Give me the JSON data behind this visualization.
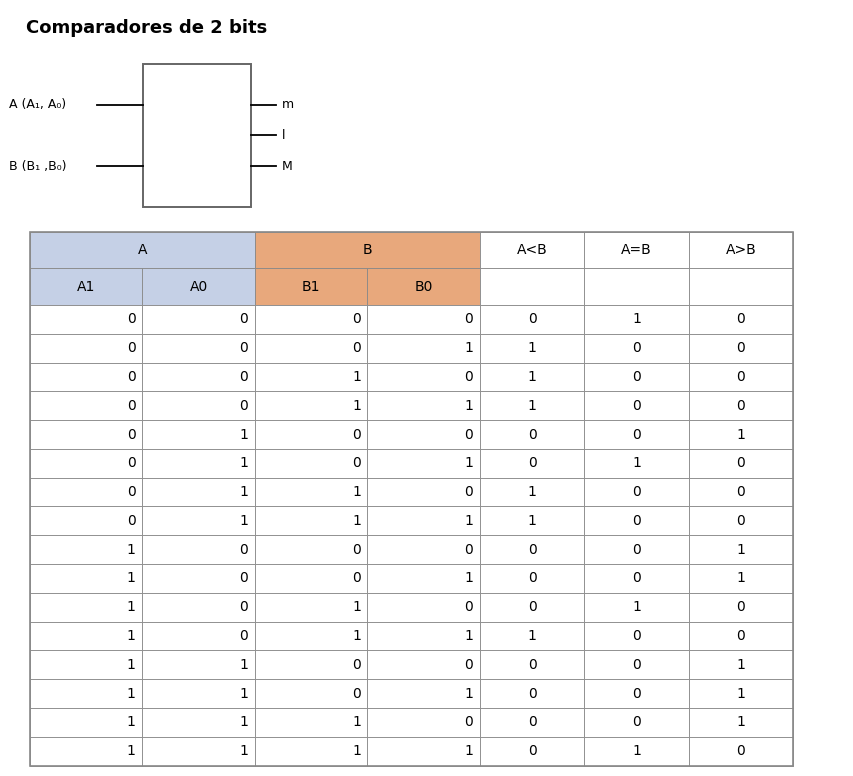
{
  "title": "Comparadores de 2 bits",
  "input_A_label": "A (A₁, A₀)",
  "input_B_label": "B (B₁ ,B₀)",
  "output_labels": [
    "m",
    "l",
    "M"
  ],
  "header_bg_A": "#c5d0e6",
  "header_bg_B": "#e8a87c",
  "header_bg_white": "#ffffff",
  "col_headers_row1": [
    "A",
    "B",
    "A<B",
    "A=B",
    "A>B"
  ],
  "col_headers_row2": [
    "A1",
    "A0",
    "B1",
    "B0",
    "",
    "",
    ""
  ],
  "data": [
    [
      0,
      0,
      0,
      0,
      0,
      1,
      0
    ],
    [
      0,
      0,
      0,
      1,
      1,
      0,
      0
    ],
    [
      0,
      0,
      1,
      0,
      1,
      0,
      0
    ],
    [
      0,
      0,
      1,
      1,
      1,
      0,
      0
    ],
    [
      0,
      1,
      0,
      0,
      0,
      0,
      1
    ],
    [
      0,
      1,
      0,
      1,
      0,
      1,
      0
    ],
    [
      0,
      1,
      1,
      0,
      1,
      0,
      0
    ],
    [
      0,
      1,
      1,
      1,
      1,
      0,
      0
    ],
    [
      1,
      0,
      0,
      0,
      0,
      0,
      1
    ],
    [
      1,
      0,
      0,
      1,
      0,
      0,
      1
    ],
    [
      1,
      0,
      1,
      0,
      0,
      1,
      0
    ],
    [
      1,
      0,
      1,
      1,
      1,
      0,
      0
    ],
    [
      1,
      1,
      0,
      0,
      0,
      0,
      1
    ],
    [
      1,
      1,
      0,
      1,
      0,
      0,
      1
    ],
    [
      1,
      1,
      1,
      0,
      0,
      0,
      1
    ],
    [
      1,
      1,
      1,
      1,
      0,
      1,
      0
    ]
  ],
  "line_color": "#888888",
  "border_color": "#888888",
  "box_edge_color": "#666666",
  "title_fontsize": 13,
  "header_fontsize": 10,
  "data_fontsize": 10,
  "diag_fontsize": 9
}
